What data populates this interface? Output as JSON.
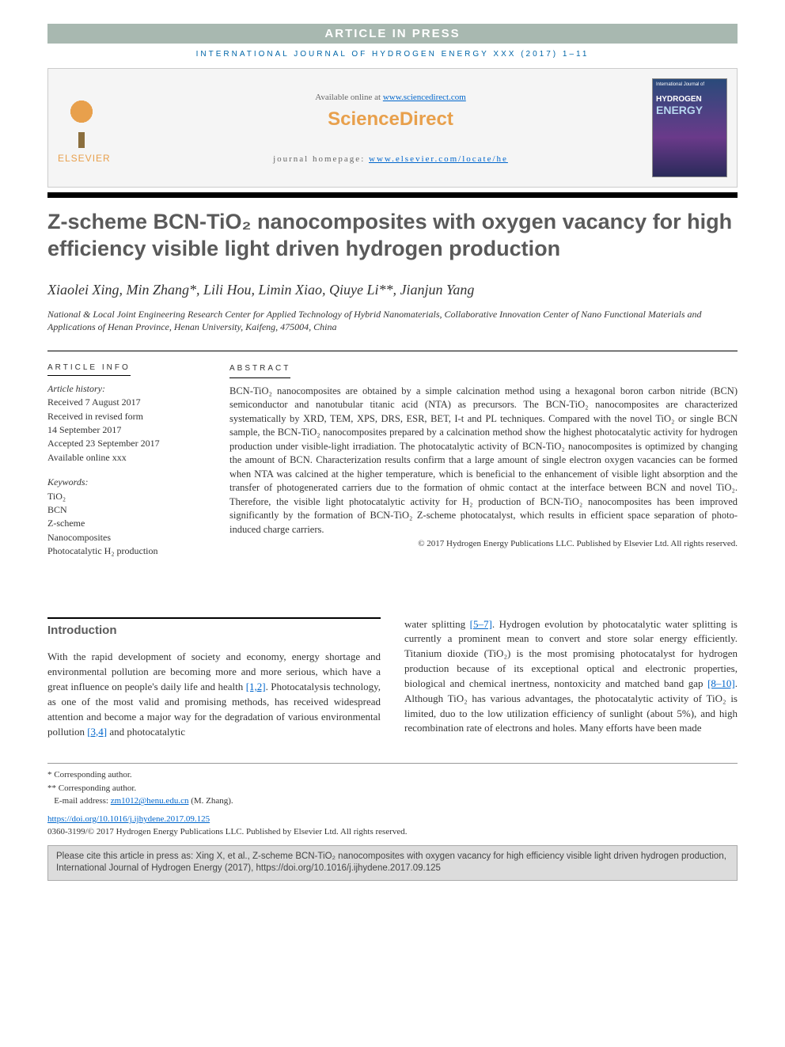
{
  "banner": "ARTICLE IN PRESS",
  "journal_ref": "INTERNATIONAL JOURNAL OF HYDROGEN ENERGY XXX (2017) 1–11",
  "header": {
    "available": "Available online at ",
    "sd_url": "www.sciencedirect.com",
    "sd_logo": "ScienceDirect",
    "homepage_label": "journal homepage: ",
    "homepage_url": "www.elsevier.com/locate/he",
    "elsevier": "ELSEVIER",
    "cover_top": "HYDROGEN",
    "cover_bottom": "ENERGY"
  },
  "title": "Z-scheme BCN-TiO₂ nanocomposites with oxygen vacancy for high efficiency visible light driven hydrogen production",
  "authors": "Xiaolei Xing, Min Zhang*, Lili Hou, Limin Xiao, Qiuye Li**, Jianjun Yang",
  "affiliation": "National & Local Joint Engineering Research Center for Applied Technology of Hybrid Nanomaterials, Collaborative Innovation Center of Nano Functional Materials and Applications of Henan Province, Henan University, Kaifeng, 475004, China",
  "info": {
    "label": "ARTICLE INFO",
    "history_title": "Article history:",
    "received": "Received 7 August 2017",
    "revised": "Received in revised form",
    "revised_date": "14 September 2017",
    "accepted": "Accepted 23 September 2017",
    "online": "Available online xxx",
    "kw_title": "Keywords:",
    "kw": [
      "TiO₂",
      "BCN",
      "Z-scheme",
      "Nanocomposites",
      "Photocatalytic H₂ production"
    ]
  },
  "abstract": {
    "label": "ABSTRACT",
    "text": "BCN-TiO₂ nanocomposites are obtained by a simple calcination method using a hexagonal boron carbon nitride (BCN) semiconductor and nanotubular titanic acid (NTA) as precursors. The BCN-TiO₂ nanocomposites are characterized systematically by XRD, TEM, XPS, DRS, ESR, BET, I-t and PL techniques. Compared with the novel TiO₂ or single BCN sample, the BCN-TiO₂ nanocomposites prepared by a calcination method show the highest photocatalytic activity for hydrogen production under visible-light irradiation. The photocatalytic activity of BCN-TiO₂ nanocomposites is optimized by changing the amount of BCN. Characterization results confirm that a large amount of single electron oxygen vacancies can be formed when NTA was calcined at the higher temperature, which is beneficial to the enhancement of visible light absorption and the transfer of photogenerated carriers due to the formation of ohmic contact at the interface between BCN and novel TiO₂. Therefore, the visible light photocatalytic activity for H₂ production of BCN-TiO₂ nanocomposites has been improved significantly by the formation of BCN-TiO₂ Z-scheme photocatalyst, which results in efficient space separation of photo-induced charge carriers.",
    "copyright": "© 2017 Hydrogen Energy Publications LLC. Published by Elsevier Ltd. All rights reserved."
  },
  "intro": {
    "heading": "Introduction",
    "left": "With the rapid development of society and economy, energy shortage and environmental pollution are becoming more and more serious, which have a great influence on people's daily life and health [1,2]. Photocatalysis technology, as one of the most valid and promising methods, has received widespread attention and become a major way for the degradation of various environmental pollution [3,4] and photocatalytic",
    "right": "water splitting [5–7]. Hydrogen evolution by photocatalytic water splitting is currently a prominent mean to convert and store solar energy efficiently. Titanium dioxide (TiO₂) is the most promising photocatalyst for hydrogen production because of its exceptional optical and electronic properties, biological and chemical inertness, nontoxicity and matched band gap [8–10]. Although TiO₂ has various advantages, the photocatalytic activity of TiO₂ is limited, duo to the low utilization efficiency of sunlight (about 5%), and high recombination rate of electrons and holes. Many efforts have been made"
  },
  "footnotes": {
    "corr1": "* Corresponding author.",
    "corr2": "** Corresponding author.",
    "email_label": "E-mail address: ",
    "email": "zm1012@henu.edu.cn",
    "email_who": " (M. Zhang).",
    "doi": "https://doi.org/10.1016/j.ijhydene.2017.09.125",
    "issn_copy": "0360-3199/© 2017 Hydrogen Energy Publications LLC. Published by Elsevier Ltd. All rights reserved."
  },
  "cite_box": "Please cite this article in press as: Xing X, et al., Z-scheme BCN-TiO₂ nanocomposites with oxygen vacancy for high efficiency visible light driven hydrogen production, International Journal of Hydrogen Energy (2017), https://doi.org/10.1016/j.ijhydene.2017.09.125",
  "refs": {
    "r12": "[1,2]",
    "r34": "[3,4]",
    "r57": "[5–7]",
    "r810": "[8–10]"
  },
  "colors": {
    "banner_bg": "#a8b8b0",
    "link": "#0066cc",
    "journal_ref": "#0066a8",
    "orange": "#e8a04c",
    "title_gray": "#5a5a5a",
    "cite_bg": "#dcdcdc"
  }
}
